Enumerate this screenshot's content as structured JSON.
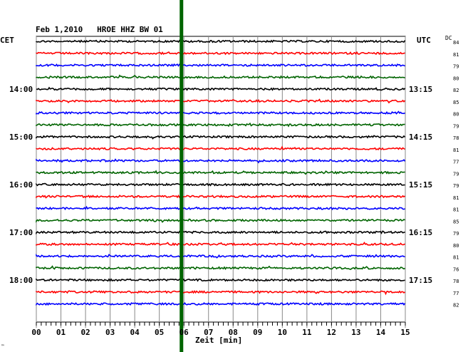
{
  "chart_data": {
    "type": "line",
    "title": "Feb 1,2010   HROE HHZ BW 01",
    "xlabel": "Zeit [min]",
    "x_ticks": [
      "00",
      "01",
      "02",
      "03",
      "04",
      "05",
      "06",
      "07",
      "08",
      "09",
      "10",
      "11",
      "12",
      "13",
      "14",
      "15"
    ],
    "xlim": [
      0,
      15
    ],
    "left_axis_label": "CET",
    "right_axis_label": "UTC",
    "dc_label": "DC",
    "left_hour_labels": [
      "14:00",
      "15:00",
      "16:00",
      "17:00",
      "18:00"
    ],
    "right_hour_labels": [
      "13:15",
      "14:15",
      "15:15",
      "16:15",
      "17:15"
    ],
    "trace_colors": [
      "#000000",
      "#ff0000",
      "#0000ff",
      "#006400"
    ],
    "dc_values": [
      "84",
      "81",
      "79",
      "80",
      "82",
      "85",
      "80",
      "79",
      "78",
      "81",
      "77",
      "79",
      "79",
      "81",
      "81",
      "85",
      "79",
      "80",
      "81",
      "76",
      "78",
      "77",
      "82"
    ],
    "event_marker_minute": 5.9,
    "event_marker_color": "#006400",
    "corner_mark": "™"
  }
}
